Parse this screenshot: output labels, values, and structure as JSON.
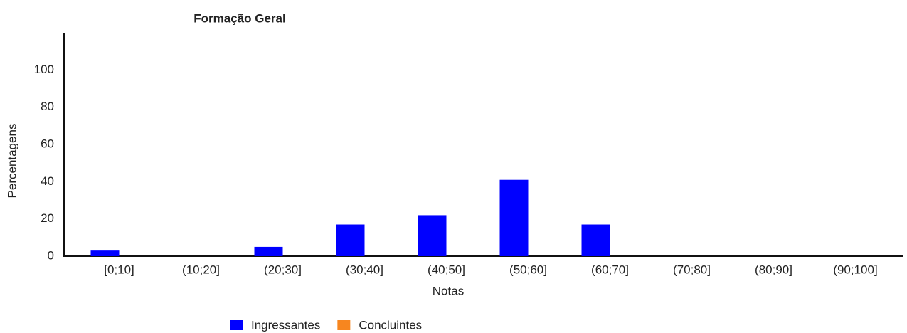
{
  "chart_data": {
    "type": "bar",
    "title": "Formação Geral",
    "x_label": "Notas",
    "y_label": "Percentagens",
    "categories": [
      "[0;10]",
      "(10;20]",
      "(20;30]",
      "(30;40]",
      "(40;50]",
      "(50;60]",
      "(60;70]",
      "(70;80]",
      "(80;90]",
      "(90;100]"
    ],
    "series": [
      {
        "name": "Ingressantes",
        "color": "#0000ff",
        "values": [
          3,
          0,
          5,
          17,
          22,
          41,
          17,
          0,
          0,
          0
        ]
      },
      {
        "name": "Concluintes",
        "color": "#f7861f",
        "values": [
          0,
          0,
          0,
          0,
          0,
          0,
          0,
          0,
          0,
          0
        ]
      }
    ],
    "ylim": [
      0,
      120
    ],
    "yticks": [
      0,
      20,
      40,
      60,
      80,
      100
    ],
    "grid": false
  }
}
